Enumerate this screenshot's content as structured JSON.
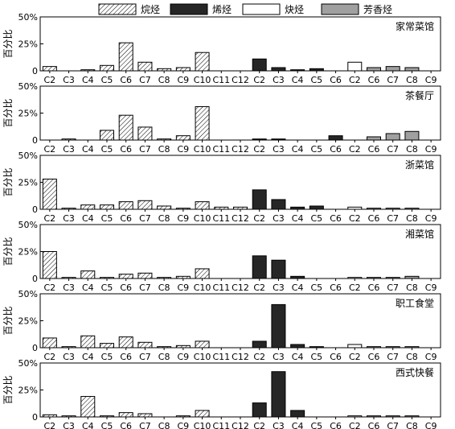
{
  "legend": {
    "items": [
      {
        "name": "烷烃",
        "style": "hatched",
        "fill": "#ffffff"
      },
      {
        "name": "烯烃",
        "style": "solid",
        "fill": "#262626"
      },
      {
        "name": "炔烃",
        "style": "solid",
        "fill": "#ffffff"
      },
      {
        "name": "芳香烃",
        "style": "solid",
        "fill": "#a0a0a0"
      }
    ]
  },
  "chart_data": {
    "type": "bar",
    "ylabel": "百分比",
    "ylim": [
      0,
      50
    ],
    "yticks": [
      "0",
      "25%",
      "50%"
    ],
    "categories": [
      "C2",
      "C3",
      "C4",
      "C5",
      "C6",
      "C7",
      "C8",
      "C9",
      "C10",
      "C11",
      "C12",
      "C2",
      "C3",
      "C4",
      "C5",
      "C6",
      "C2",
      "C6",
      "C7",
      "C8",
      "C9"
    ],
    "category_series": [
      "烷烃",
      "烷烃",
      "烷烃",
      "烷烃",
      "烷烃",
      "烷烃",
      "烷烃",
      "烷烃",
      "烷烃",
      "烷烃",
      "烷烃",
      "烯烃",
      "烯烃",
      "烯烃",
      "烯烃",
      "烯烃",
      "炔烃",
      "芳香烃",
      "芳香烃",
      "芳香烃",
      "芳香烃"
    ],
    "panels": [
      {
        "title": "家常菜馆",
        "values": [
          4,
          0,
          1,
          5,
          26,
          8,
          2,
          3,
          17,
          0,
          0,
          11,
          3,
          1,
          2,
          0,
          8,
          3,
          4,
          3,
          0
        ]
      },
      {
        "title": "茶餐厅",
        "values": [
          0,
          1,
          0,
          9,
          23,
          12,
          1,
          4,
          31,
          0,
          0,
          1,
          1,
          0,
          0,
          4,
          0,
          3,
          6,
          8,
          0
        ]
      },
      {
        "title": "浙菜馆",
        "values": [
          28,
          1,
          4,
          4,
          7,
          8,
          3,
          1,
          7,
          2,
          2,
          18,
          9,
          2,
          3,
          0,
          2,
          1,
          1,
          1,
          0
        ]
      },
      {
        "title": "湘菜馆",
        "values": [
          25,
          1,
          7,
          1,
          4,
          5,
          1,
          2,
          9,
          0,
          0,
          21,
          17,
          2,
          0,
          0,
          1,
          1,
          1,
          2,
          0
        ]
      },
      {
        "title": "职工食堂",
        "values": [
          9,
          1,
          11,
          4,
          10,
          5,
          1,
          2,
          6,
          0,
          0,
          6,
          40,
          3,
          1,
          0,
          3,
          1,
          1,
          1,
          0
        ]
      },
      {
        "title": "西式快餐",
        "values": [
          2,
          1,
          19,
          1,
          4,
          3,
          0,
          1,
          6,
          0,
          0,
          13,
          42,
          6,
          0,
          0,
          1,
          1,
          1,
          1,
          0
        ]
      }
    ]
  }
}
